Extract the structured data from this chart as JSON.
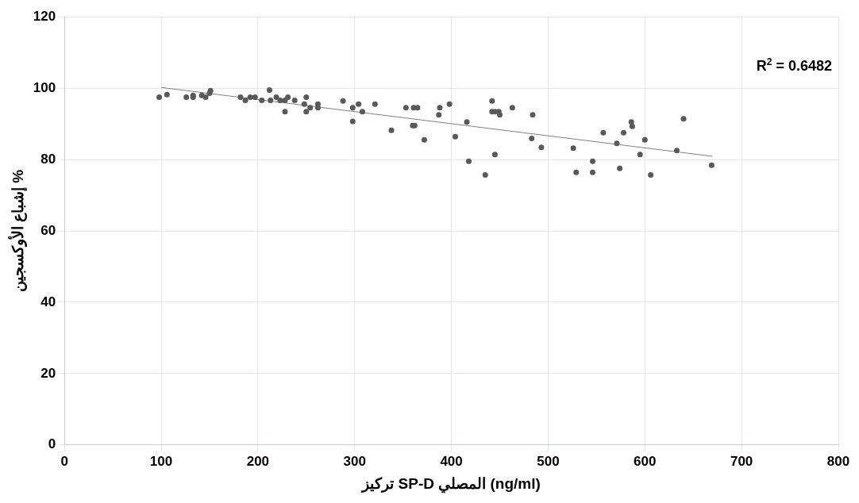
{
  "chart_data": {
    "type": "scatter",
    "xlabel": "تركيز SP-D المصلي (ng/ml)",
    "ylabel": "إشباع الأوكسجين %",
    "xlim": [
      0,
      800
    ],
    "xticks": [
      0,
      100,
      200,
      300,
      400,
      500,
      600,
      700,
      800
    ],
    "ylim": [
      0,
      120
    ],
    "yticks": [
      0,
      20,
      40,
      60,
      80,
      100,
      120
    ],
    "grid": true,
    "legend": false,
    "annotations": [
      "R$^{2}$ = 0.6482"
    ],
    "series": [
      {
        "marker": "circle",
        "color": "#595959",
        "x": [
          98,
          106,
          126,
          133,
          133,
          142,
          146,
          150,
          151,
          182,
          187,
          192,
          197,
          204,
          212,
          213,
          219,
          223,
          228,
          228,
          231,
          238,
          248,
          250,
          250,
          254,
          262,
          262,
          288,
          298,
          298,
          304,
          308,
          321,
          338,
          353,
          360,
          362,
          361,
          365,
          372,
          387,
          388,
          398,
          404,
          416,
          418,
          435,
          442,
          442,
          445,
          449,
          445,
          450,
          463,
          483,
          484,
          493,
          526,
          529,
          546,
          546,
          557,
          571,
          574,
          578,
          586,
          587,
          595,
          600,
          606,
          633,
          640,
          669
        ],
        "values": [
          97.5,
          98.2,
          97.5,
          98,
          97.5,
          98,
          97.5,
          98.6,
          99.3,
          97.5,
          96.6,
          97.5,
          97.5,
          96.6,
          99.5,
          96.6,
          97.5,
          96.6,
          96.6,
          93.4,
          97.5,
          96.6,
          95.5,
          97.5,
          93.4,
          94.5,
          95.5,
          94.5,
          96.4,
          90.7,
          94.5,
          95.5,
          93.4,
          95.5,
          88.2,
          94.5,
          89.5,
          89.5,
          94.5,
          94.5,
          85.5,
          92.5,
          94.5,
          95.5,
          86.4,
          90.5,
          79.5,
          75.7,
          96.4,
          93.4,
          93.4,
          93.4,
          81.4,
          92.5,
          94.5,
          85.9,
          92.5,
          83.4,
          83.2,
          76.4,
          79.5,
          76.4,
          87.5,
          84.5,
          77.5,
          87.5,
          90.5,
          89.3,
          81.4,
          85.5,
          75.7,
          82.5,
          91.4,
          78.4
        ]
      },
      {
        "type": "line",
        "marker": "none",
        "color": "#808080",
        "x": [
          100,
          670
        ],
        "values": [
          100.2,
          80.9
        ]
      }
    ]
  }
}
